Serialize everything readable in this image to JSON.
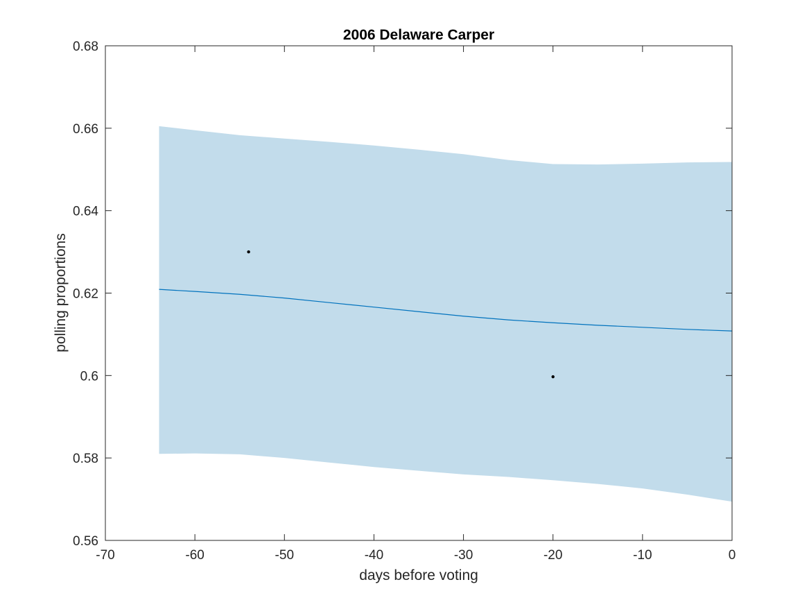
{
  "chart_data": {
    "type": "line",
    "title": "2006 Delaware Carper",
    "xlabel": "days before voting",
    "ylabel": "polling proportions",
    "xlim": [
      -70,
      0
    ],
    "ylim": [
      0.56,
      0.68
    ],
    "x_ticks": [
      -70,
      -60,
      -50,
      -40,
      -30,
      -20,
      -10,
      0
    ],
    "x_tick_labels": [
      "-70",
      "-60",
      "-50",
      "-40",
      "-30",
      "-20",
      "-10",
      "0"
    ],
    "y_ticks": [
      0.56,
      0.58,
      0.6,
      0.62,
      0.64,
      0.66,
      0.68
    ],
    "y_tick_labels": [
      "0.56",
      "0.58",
      "0.6",
      "0.62",
      "0.64",
      "0.66",
      "0.68"
    ],
    "grid": false,
    "colors": {
      "band": "#c2dceb",
      "line": "#0072bd",
      "points": "#000000",
      "axes": "#262626"
    },
    "band": {
      "x": [
        -64,
        -60,
        -55,
        -50,
        -45,
        -40,
        -35,
        -30,
        -25,
        -20,
        -15,
        -10,
        -5,
        0
      ],
      "upper": [
        0.6605,
        0.6595,
        0.6583,
        0.6575,
        0.6567,
        0.6558,
        0.6548,
        0.6537,
        0.6523,
        0.6513,
        0.6512,
        0.6514,
        0.6517,
        0.6518
      ],
      "lower": [
        0.581,
        0.5811,
        0.5809,
        0.58,
        0.5789,
        0.5778,
        0.5769,
        0.576,
        0.5754,
        0.5746,
        0.5737,
        0.5726,
        0.5711,
        0.5694
      ]
    },
    "series": [
      {
        "type": "line",
        "x": [
          -64,
          -60,
          -55,
          -50,
          -45,
          -40,
          -35,
          -30,
          -25,
          -20,
          -15,
          -10,
          -5,
          0
        ],
        "values": [
          0.6209,
          0.6204,
          0.6197,
          0.6188,
          0.6177,
          0.6166,
          0.6155,
          0.6144,
          0.6135,
          0.6128,
          0.6122,
          0.6117,
          0.6112,
          0.6108
        ]
      },
      {
        "type": "scatter",
        "x": [
          -54,
          -20
        ],
        "values": [
          0.63,
          0.5997
        ]
      }
    ]
  }
}
